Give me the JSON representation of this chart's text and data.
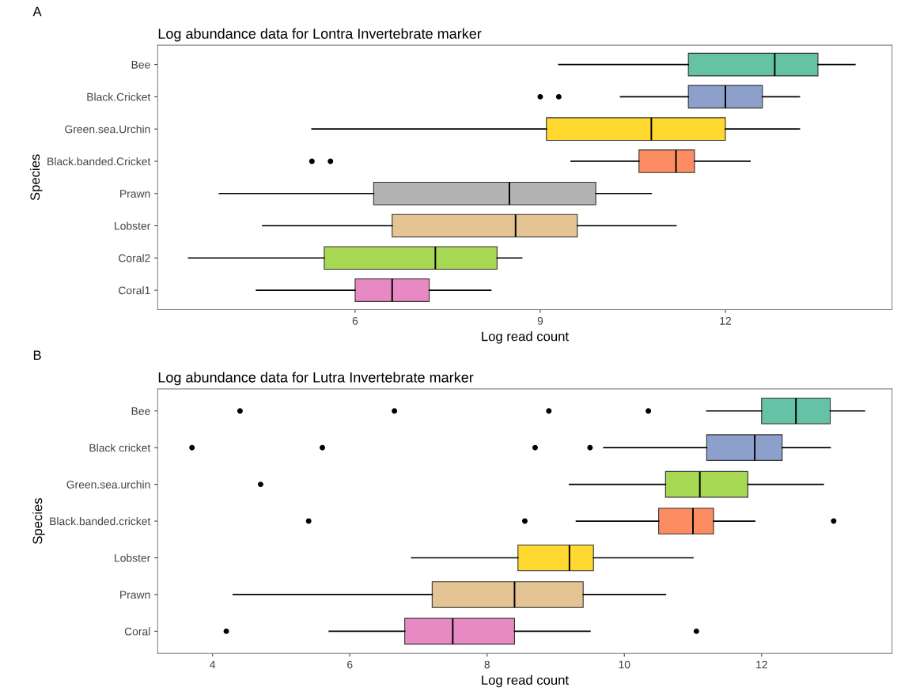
{
  "chart_data": [
    {
      "type": "box",
      "orientation": "horizontal",
      "title": "Log abundance data for Lontra Invertebrate marker",
      "xlabel": "Log read count",
      "ylabel": "Species",
      "annotations": [
        "A"
      ],
      "grid": false,
      "legend": false,
      "categories": [
        "Bee",
        "Black.Cricket",
        "Green.sea.Urchin",
        "Black.banded.Cricket",
        "Prawn",
        "Lobster",
        "Coral2",
        "Coral1"
      ],
      "colors": [
        "#66c2a5",
        "#8da0cb",
        "#ffd92f",
        "#fc8d62",
        "#b3b3b3",
        "#e5c494",
        "#a6d854",
        "#e78ac3"
      ],
      "xlim": [
        2.8,
        14.7
      ],
      "xticks": [
        6,
        9,
        12
      ],
      "boxes": [
        {
          "low": 9.3,
          "q1": 11.4,
          "median": 12.8,
          "q3": 13.5,
          "high": 14.1
        },
        {
          "low": 10.3,
          "q1": 11.4,
          "median": 12.0,
          "q3": 12.6,
          "high": 13.2,
          "outliers": [
            9.0,
            9.3
          ]
        },
        {
          "low": 5.3,
          "q1": 9.1,
          "median": 10.8,
          "q3": 12.0,
          "high": 13.2
        },
        {
          "low": 9.5,
          "q1": 10.6,
          "median": 11.2,
          "q3": 11.5,
          "high": 12.4,
          "outliers": [
            5.3,
            5.6
          ]
        },
        {
          "low": 3.8,
          "q1": 6.3,
          "median": 8.5,
          "q3": 9.9,
          "high": 10.8
        },
        {
          "low": 4.5,
          "q1": 6.6,
          "median": 8.6,
          "q3": 9.6,
          "high": 11.2
        },
        {
          "low": 3.3,
          "q1": 5.5,
          "median": 7.3,
          "q3": 8.3,
          "high": 8.7
        },
        {
          "low": 4.4,
          "q1": 6.0,
          "median": 6.6,
          "q3": 7.2,
          "high": 8.2
        }
      ]
    },
    {
      "type": "box",
      "orientation": "horizontal",
      "title": "Log abundance data for Lutra Invertebrate marker",
      "xlabel": "Log read count",
      "ylabel": "Species",
      "annotations": [
        "B"
      ],
      "grid": false,
      "legend": false,
      "categories": [
        "Bee",
        "Black cricket",
        "Green.sea.urchin",
        "Black.banded.cricket",
        "Lobster",
        "Prawn",
        "Coral"
      ],
      "colors": [
        "#66c2a5",
        "#8da0cb",
        "#a6d854",
        "#fc8d62",
        "#ffd92f",
        "#e5c494",
        "#e78ac3"
      ],
      "xlim": [
        3.2,
        13.9
      ],
      "xticks": [
        4,
        6,
        8,
        10,
        12
      ],
      "boxes": [
        {
          "low": 11.2,
          "q1": 12.0,
          "median": 12.5,
          "q3": 13.0,
          "high": 13.5,
          "outliers": [
            4.4,
            6.65,
            8.9,
            10.35
          ]
        },
        {
          "low": 9.7,
          "q1": 11.2,
          "median": 11.9,
          "q3": 12.3,
          "high": 13.0,
          "outliers": [
            3.7,
            5.6,
            8.7,
            9.5
          ]
        },
        {
          "low": 9.2,
          "q1": 10.6,
          "median": 11.1,
          "q3": 11.8,
          "high": 12.9,
          "outliers": [
            4.7
          ]
        },
        {
          "low": 9.3,
          "q1": 10.5,
          "median": 11.0,
          "q3": 11.3,
          "high": 11.9,
          "outliers": [
            5.4,
            8.55,
            13.05
          ]
        },
        {
          "low": 6.9,
          "q1": 8.45,
          "median": 9.2,
          "q3": 9.55,
          "high": 11.0
        },
        {
          "low": 4.3,
          "q1": 7.2,
          "median": 8.4,
          "q3": 9.4,
          "high": 10.6
        },
        {
          "low": 5.7,
          "q1": 6.8,
          "median": 7.5,
          "q3": 8.4,
          "high": 9.5,
          "outliers": [
            4.2,
            11.05
          ]
        }
      ]
    }
  ]
}
